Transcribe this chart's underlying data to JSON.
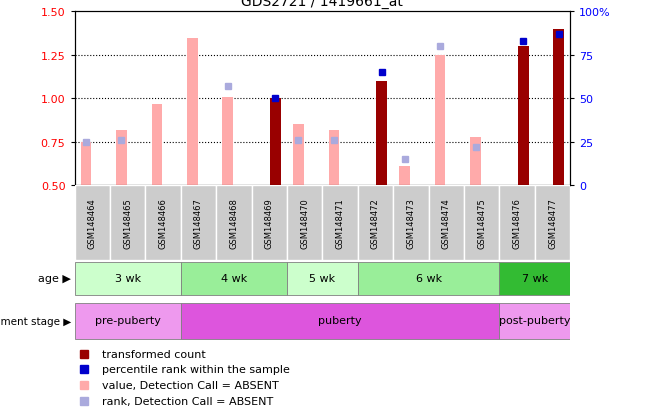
{
  "title": "GDS2721 / 1419661_at",
  "samples": [
    "GSM148464",
    "GSM148465",
    "GSM148466",
    "GSM148467",
    "GSM148468",
    "GSM148469",
    "GSM148470",
    "GSM148471",
    "GSM148472",
    "GSM148473",
    "GSM148474",
    "GSM148475",
    "GSM148476",
    "GSM148477"
  ],
  "transformed_count": [
    null,
    null,
    null,
    null,
    null,
    1.0,
    null,
    null,
    1.1,
    null,
    null,
    null,
    1.3,
    1.4
  ],
  "percentile_rank": [
    null,
    null,
    null,
    null,
    null,
    50,
    null,
    null,
    65,
    null,
    null,
    null,
    83,
    87
  ],
  "value_absent": [
    0.75,
    0.82,
    0.97,
    1.35,
    1.01,
    null,
    0.85,
    0.82,
    null,
    0.61,
    1.25,
    0.78,
    null,
    null
  ],
  "rank_absent": [
    25,
    26,
    null,
    null,
    57,
    null,
    26,
    26,
    null,
    15,
    80,
    22,
    null,
    null
  ],
  "age_groups": [
    {
      "label": "3 wk",
      "start": 0,
      "end": 3,
      "color": "#ccffcc"
    },
    {
      "label": "4 wk",
      "start": 3,
      "end": 6,
      "color": "#99ee99"
    },
    {
      "label": "5 wk",
      "start": 6,
      "end": 8,
      "color": "#ccffcc"
    },
    {
      "label": "6 wk",
      "start": 8,
      "end": 12,
      "color": "#99ee99"
    },
    {
      "label": "7 wk",
      "start": 12,
      "end": 14,
      "color": "#33bb33"
    }
  ],
  "dev_groups": [
    {
      "label": "pre-puberty",
      "start": 0,
      "end": 3,
      "color": "#ee99ee"
    },
    {
      "label": "puberty",
      "start": 3,
      "end": 12,
      "color": "#dd55dd"
    },
    {
      "label": "post-puberty",
      "start": 12,
      "end": 14,
      "color": "#ee99ee"
    }
  ],
  "ylim": [
    0.5,
    1.5
  ],
  "y2lim": [
    0,
    100
  ],
  "yticks_left": [
    0.5,
    0.75,
    1.0,
    1.25,
    1.5
  ],
  "yticks_right": [
    0,
    25,
    50,
    75,
    100
  ],
  "bar_width": 0.35,
  "dark_red": "#990000",
  "light_red": "#ffaaaa",
  "dark_blue": "#0000cc",
  "light_blue": "#aaaadd",
  "sample_bg": "#cccccc",
  "label_row_color": "#dddddd"
}
